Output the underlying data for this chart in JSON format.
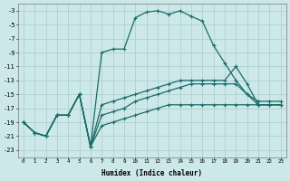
{
  "xlabel": "Humidex (Indice chaleur)",
  "background_color": "#cce8e8",
  "grid_color": "#aacccc",
  "line_color": "#1a6b6b",
  "xlim": [
    -0.5,
    23.5
  ],
  "ylim": [
    -24,
    -2
  ],
  "xticks": [
    0,
    1,
    2,
    3,
    4,
    5,
    6,
    7,
    8,
    9,
    10,
    11,
    12,
    13,
    14,
    15,
    16,
    17,
    18,
    19,
    20,
    21,
    22,
    23
  ],
  "yticks": [
    -3,
    -5,
    -7,
    -9,
    -11,
    -13,
    -15,
    -17,
    -19,
    -21,
    -23
  ],
  "curve1_x": [
    0,
    1,
    2,
    3,
    4,
    5,
    6,
    7,
    8,
    9,
    10,
    11,
    12,
    13,
    14,
    15,
    16,
    17,
    18,
    19,
    20,
    21,
    22,
    23
  ],
  "curve1_y": [
    -19.0,
    -20.5,
    -21.0,
    -18.0,
    -18.0,
    -15.0,
    -22.5,
    -9.0,
    -8.5,
    -8.5,
    -4.0,
    -3.2,
    -3.0,
    -3.5,
    -3.0,
    -3.8,
    -4.5,
    -8.0,
    -10.5,
    -13.0,
    -15.0,
    -16.0,
    -16.0,
    -16.0
  ],
  "curve2_x": [
    0,
    1,
    2,
    3,
    4,
    5,
    6,
    7,
    8,
    9,
    10,
    11,
    12,
    13,
    14,
    15,
    16,
    17,
    18,
    19,
    20,
    21,
    22,
    23
  ],
  "curve2_y": [
    -19.0,
    -20.5,
    -21.0,
    -18.0,
    -18.0,
    -15.0,
    -22.5,
    -19.5,
    -19.0,
    -18.5,
    -18.0,
    -17.5,
    -17.0,
    -16.5,
    -16.5,
    -16.5,
    -16.5,
    -16.5,
    -16.5,
    -16.5,
    -16.5,
    -16.5,
    -16.5,
    -16.5
  ],
  "curve3_x": [
    0,
    1,
    2,
    3,
    4,
    5,
    6,
    7,
    8,
    9,
    10,
    11,
    12,
    13,
    14,
    15,
    16,
    17,
    18,
    19,
    20,
    21,
    22,
    23
  ],
  "curve3_y": [
    -19.0,
    -20.5,
    -21.0,
    -18.0,
    -18.0,
    -15.0,
    -22.5,
    -18.0,
    -17.5,
    -17.0,
    -16.0,
    -15.5,
    -15.0,
    -14.5,
    -14.0,
    -13.5,
    -13.5,
    -13.5,
    -13.5,
    -13.5,
    -15.0,
    -16.5,
    -16.5,
    -16.5
  ],
  "curve4_x": [
    0,
    1,
    2,
    3,
    4,
    5,
    6,
    7,
    8,
    9,
    10,
    11,
    12,
    13,
    14,
    15,
    16,
    17,
    18,
    19,
    20,
    21,
    22,
    23
  ],
  "curve4_y": [
    -19.0,
    -20.5,
    -21.0,
    -18.0,
    -18.0,
    -15.0,
    -22.5,
    -16.5,
    -16.0,
    -15.5,
    -15.0,
    -14.5,
    -14.0,
    -13.5,
    -13.0,
    -13.0,
    -13.0,
    -13.0,
    -13.0,
    -11.0,
    -13.5,
    -16.5,
    -16.5,
    -16.5
  ]
}
